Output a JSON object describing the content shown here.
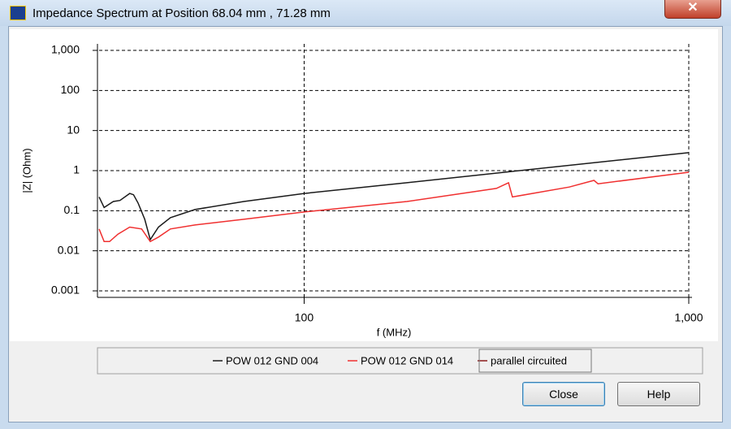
{
  "window_title": "Impedance Spectrum at Position 68.04 mm , 71.28 mm",
  "buttons": [
    "Close",
    "Help"
  ],
  "chart_data": {
    "type": "line",
    "xlabel": "f (MHz)",
    "ylabel": "|Z| (Ohm)",
    "xscale": "log",
    "yscale": "log",
    "grid": true,
    "xlim": [
      29.3,
      1000
    ],
    "ylim": [
      0.001,
      1000
    ],
    "xticks": [
      {
        "value": 100,
        "label": "100"
      },
      {
        "value": 1000,
        "label": "1,000"
      }
    ],
    "yticks": [
      {
        "value": 1000,
        "label": "1,000"
      },
      100,
      10,
      1,
      0.1,
      0.01,
      0.001
    ],
    "series": [
      {
        "name": "POW 012 GND 004",
        "color": "#1a1a1a",
        "x": [
          29.3,
          30.2,
          31.9,
          33.2,
          35.2,
          36.0,
          37.0,
          38.5,
          39.8,
          41.8,
          44.9,
          52,
          69.7,
          100,
          185,
          332,
          1000
        ],
        "values": [
          0.22,
          0.12,
          0.17,
          0.18,
          0.27,
          0.25,
          0.155,
          0.061,
          0.019,
          0.039,
          0.067,
          0.107,
          0.17,
          0.27,
          0.5,
          0.91,
          2.8
        ]
      },
      {
        "name": "POW 012 GND 014",
        "color": "#f03030",
        "x": [
          29.3,
          30.2,
          31.2,
          32.8,
          35.2,
          37.8,
          39.8,
          41.8,
          44.9,
          52,
          69.7,
          100,
          185,
          316,
          340,
          348,
          489,
          567,
          581,
          1000
        ],
        "values": [
          0.035,
          0.017,
          0.017,
          0.026,
          0.039,
          0.035,
          0.017,
          0.022,
          0.035,
          0.044,
          0.061,
          0.093,
          0.17,
          0.36,
          0.5,
          0.22,
          0.39,
          0.57,
          0.47,
          0.91
        ]
      },
      {
        "name": "parallel circuited",
        "color": "#8b1a1a"
      }
    ]
  }
}
